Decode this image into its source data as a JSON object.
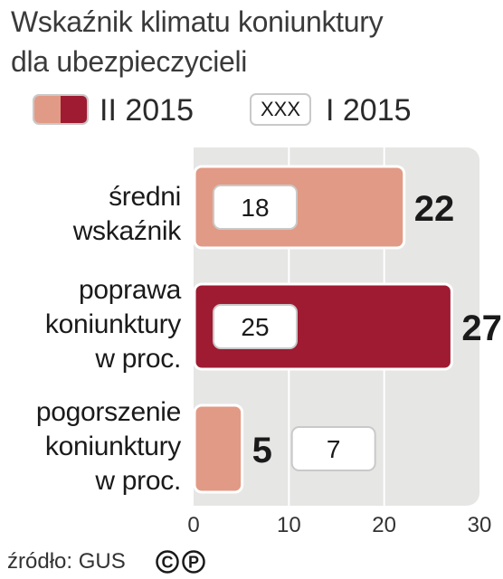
{
  "title_lines": [
    "Wskaźnik klimatu koniunktury",
    "dla ubezpieczycieli"
  ],
  "legend": {
    "current_label": "II 2015",
    "previous_box_text": "XXX",
    "previous_label": "I 2015"
  },
  "colors": {
    "light_bar": "#e19a85",
    "dark_bar": "#9e1b32",
    "plot_bg": "#e6e6e5",
    "box_border": "#c9c9c9"
  },
  "chart_data": {
    "type": "bar",
    "orientation": "horizontal",
    "categories": [
      "średni wskaźnik",
      "poprawa koniunktury w proc.",
      "pogorszenie koniunktury w proc."
    ],
    "category_lines": [
      [
        "średni",
        "wskaźnik"
      ],
      [
        "poprawa",
        "koniunktury",
        "w proc."
      ],
      [
        "pogorszenie",
        "koniunktury",
        "w proc."
      ]
    ],
    "series": [
      {
        "name": "II 2015",
        "values": [
          22,
          27,
          5
        ],
        "highlight": [
          false,
          true,
          false
        ]
      },
      {
        "name": "I 2015",
        "values": [
          18,
          25,
          7
        ]
      }
    ],
    "xlim": [
      0,
      30
    ],
    "xticks": [
      "0",
      "10",
      "20",
      "30"
    ],
    "grid": true
  },
  "source": "źródło: GUS",
  "license_icons": [
    "C",
    "P"
  ]
}
